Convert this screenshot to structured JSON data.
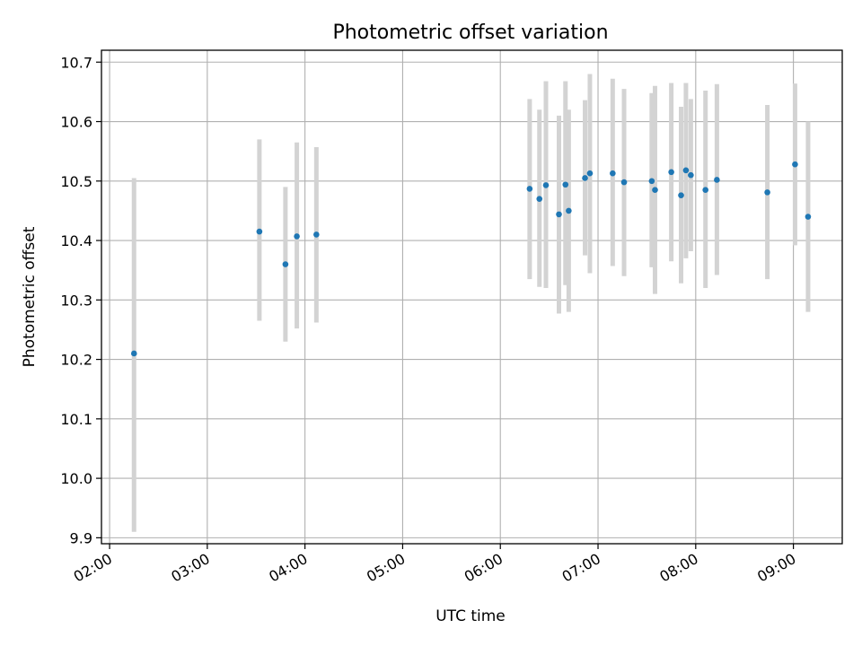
{
  "chart_data": {
    "type": "scatter",
    "title": "Photometric offset variation",
    "xlabel": "UTC time",
    "ylabel": "Photometric offset",
    "x_is_time": true,
    "xlim": [
      "01:55",
      "09:30"
    ],
    "ylim": [
      9.89,
      10.72
    ],
    "x_ticks": [
      "02:00",
      "03:00",
      "04:00",
      "05:00",
      "06:00",
      "07:00",
      "08:00",
      "09:00"
    ],
    "y_ticks": [
      9.9,
      10.0,
      10.1,
      10.2,
      10.3,
      10.4,
      10.5,
      10.6,
      10.7
    ],
    "y_tick_labels": [
      "9.9",
      "10.0",
      "10.1",
      "10.2",
      "10.3",
      "10.4",
      "10.5",
      "10.6",
      "10.7"
    ],
    "grid": true,
    "point_color": "#1f77b4",
    "errorbar_color": "#d3d3d3",
    "points": [
      {
        "x": "02:15",
        "y": 10.21,
        "ymin": 9.91,
        "ymax": 10.505
      },
      {
        "x": "03:32",
        "y": 10.415,
        "ymin": 10.265,
        "ymax": 10.57
      },
      {
        "x": "03:48",
        "y": 10.36,
        "ymin": 10.23,
        "ymax": 10.49
      },
      {
        "x": "03:55",
        "y": 10.407,
        "ymin": 10.252,
        "ymax": 10.565
      },
      {
        "x": "04:07",
        "y": 10.41,
        "ymin": 10.262,
        "ymax": 10.557
      },
      {
        "x": "06:18",
        "y": 10.487,
        "ymin": 10.335,
        "ymax": 10.638
      },
      {
        "x": "06:24",
        "y": 10.47,
        "ymin": 10.322,
        "ymax": 10.62
      },
      {
        "x": "06:28",
        "y": 10.493,
        "ymin": 10.32,
        "ymax": 10.668
      },
      {
        "x": "06:36",
        "y": 10.444,
        "ymin": 10.277,
        "ymax": 10.61
      },
      {
        "x": "06:40",
        "y": 10.494,
        "ymin": 10.325,
        "ymax": 10.668
      },
      {
        "x": "06:42",
        "y": 10.45,
        "ymin": 10.28,
        "ymax": 10.62
      },
      {
        "x": "06:52",
        "y": 10.505,
        "ymin": 10.375,
        "ymax": 10.636
      },
      {
        "x": "06:55",
        "y": 10.513,
        "ymin": 10.345,
        "ymax": 10.68
      },
      {
        "x": "07:09",
        "y": 10.513,
        "ymin": 10.357,
        "ymax": 10.672
      },
      {
        "x": "07:16",
        "y": 10.498,
        "ymin": 10.34,
        "ymax": 10.655
      },
      {
        "x": "07:33",
        "y": 10.5,
        "ymin": 10.355,
        "ymax": 10.648
      },
      {
        "x": "07:35",
        "y": 10.485,
        "ymin": 10.31,
        "ymax": 10.66
      },
      {
        "x": "07:45",
        "y": 10.515,
        "ymin": 10.365,
        "ymax": 10.665
      },
      {
        "x": "07:51",
        "y": 10.476,
        "ymin": 10.328,
        "ymax": 10.625
      },
      {
        "x": "07:54",
        "y": 10.518,
        "ymin": 10.37,
        "ymax": 10.665
      },
      {
        "x": "07:57",
        "y": 10.51,
        "ymin": 10.382,
        "ymax": 10.638
      },
      {
        "x": "08:06",
        "y": 10.485,
        "ymin": 10.32,
        "ymax": 10.652
      },
      {
        "x": "08:13",
        "y": 10.502,
        "ymin": 10.342,
        "ymax": 10.663
      },
      {
        "x": "08:44",
        "y": 10.481,
        "ymin": 10.335,
        "ymax": 10.628
      },
      {
        "x": "09:01",
        "y": 10.528,
        "ymin": 10.392,
        "ymax": 10.664
      },
      {
        "x": "09:09",
        "y": 10.44,
        "ymin": 10.28,
        "ymax": 10.6
      }
    ]
  }
}
